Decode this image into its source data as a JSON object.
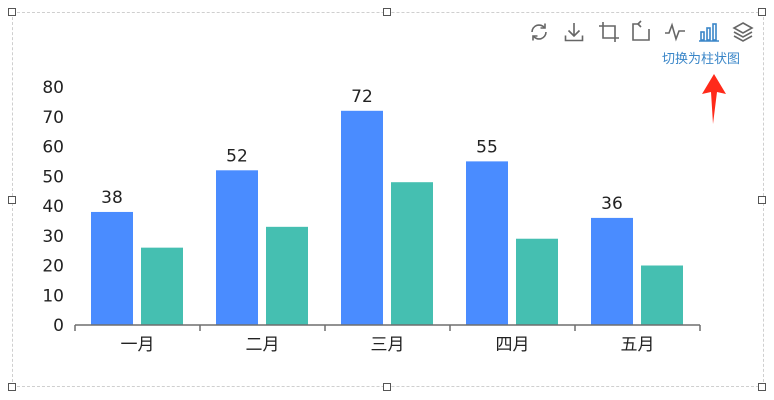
{
  "toolbox": {
    "tools": [
      {
        "name": "restore-icon",
        "active": false
      },
      {
        "name": "download-icon",
        "active": false
      },
      {
        "name": "crop-zoom-icon",
        "active": false
      },
      {
        "name": "zoom-back-icon",
        "active": false
      },
      {
        "name": "line-chart-icon",
        "active": false
      },
      {
        "name": "bar-chart-icon",
        "active": true
      },
      {
        "name": "stack-icon",
        "active": false
      }
    ],
    "hover_label": "切换为柱状图",
    "accent_color": "#3a86c8",
    "inactive_color": "#666666",
    "pointer_color": "#ff2a1a"
  },
  "chart_data": {
    "type": "bar",
    "categories": [
      "一月",
      "二月",
      "三月",
      "四月",
      "五月"
    ],
    "series": [
      {
        "values": [
          38,
          52,
          72,
          55,
          36
        ],
        "color": "#4a8cff",
        "show_labels": true
      },
      {
        "values": [
          26,
          33,
          48,
          29,
          20
        ],
        "color": "#45bfb1",
        "show_labels": false
      }
    ],
    "ylim": [
      0,
      80
    ],
    "yticks": [
      0,
      10,
      20,
      30,
      40,
      50,
      60,
      70,
      80
    ],
    "grid": false,
    "legend": "none"
  }
}
